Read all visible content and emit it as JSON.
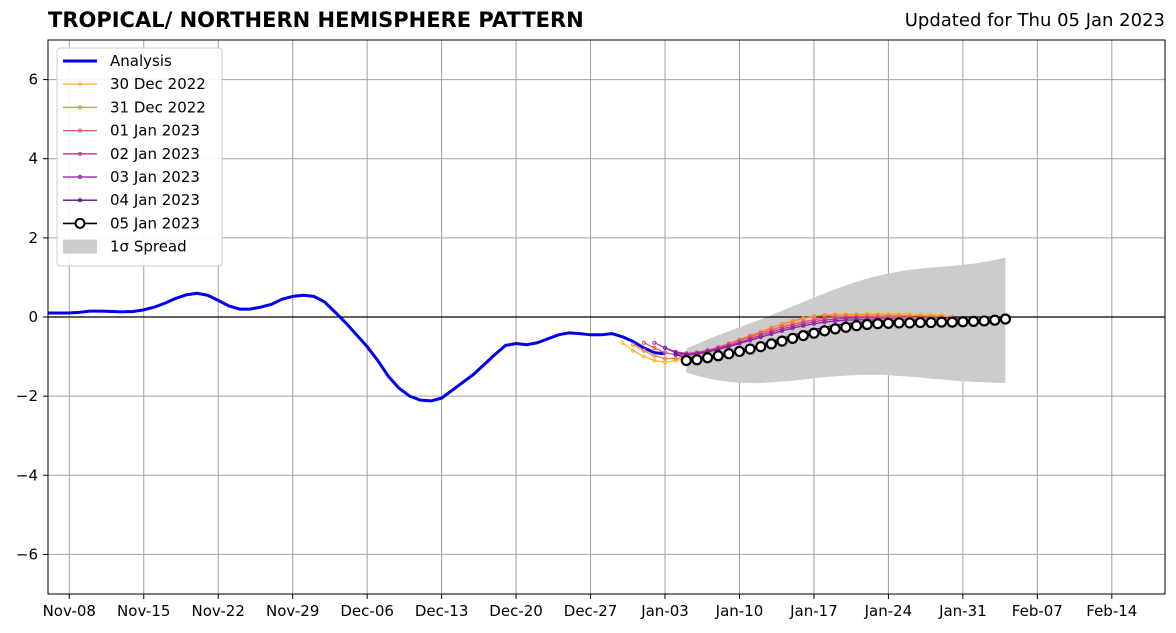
{
  "chart_data": {
    "type": "line",
    "title": "TROPICAL/ NORTHERN HEMISPHERE PATTERN",
    "subtitle": "Updated for Thu 05 Jan 2023",
    "xlabel": "",
    "ylabel": "",
    "xlim": [
      "2022-11-06",
      "2023-02-19"
    ],
    "ylim": [
      -7,
      7
    ],
    "grid": true,
    "legend_position": "upper left",
    "x_ticks": [
      "2022-11-08",
      "2022-11-15",
      "2022-11-22",
      "2022-11-29",
      "2022-12-06",
      "2022-12-13",
      "2022-12-20",
      "2022-12-27",
      "2023-01-03",
      "2023-01-10",
      "2023-01-17",
      "2023-01-24",
      "2023-01-31",
      "2023-02-07",
      "2023-02-14"
    ],
    "x_tick_labels": [
      "Nov-08",
      "Nov-15",
      "Nov-22",
      "Nov-29",
      "Dec-06",
      "Dec-13",
      "Dec-20",
      "Dec-27",
      "Jan-03",
      "Jan-10",
      "Jan-17",
      "Jan-24",
      "Jan-31",
      "Feb-07",
      "Feb-14"
    ],
    "y_ticks": [
      -6,
      -4,
      -2,
      0,
      2,
      4,
      6
    ],
    "y_tick_labels": [
      "−6",
      "−4",
      "−2",
      "0",
      "2",
      "4",
      "6"
    ],
    "analysis": {
      "name": "Analysis",
      "color": "#0000ee",
      "start": "2022-11-06",
      "values": [
        0.1,
        0.1,
        0.1,
        0.12,
        0.15,
        0.15,
        0.14,
        0.13,
        0.14,
        0.18,
        0.25,
        0.35,
        0.47,
        0.56,
        0.6,
        0.55,
        0.42,
        0.28,
        0.2,
        0.2,
        0.25,
        0.32,
        0.45,
        0.52,
        0.55,
        0.52,
        0.38,
        0.12,
        -0.15,
        -0.45,
        -0.75,
        -1.1,
        -1.5,
        -1.8,
        -2.0,
        -2.1,
        -2.12,
        -2.05,
        -1.85,
        -1.65,
        -1.45,
        -1.2,
        -0.95,
        -0.72,
        -0.67,
        -0.7,
        -0.65,
        -0.55,
        -0.45,
        -0.4,
        -0.42,
        -0.45,
        -0.45,
        -0.42,
        -0.5,
        -0.62,
        -0.78,
        -0.9,
        -0.93
      ]
    },
    "forecasts": [
      {
        "name": "30 Dec 2022",
        "color": "#ffb534",
        "start": "2022-12-30",
        "values": [
          -0.65,
          -0.85,
          -1.0,
          -1.1,
          -1.15,
          -1.1,
          -1.05,
          -0.98,
          -0.9,
          -0.82,
          -0.72,
          -0.62,
          -0.52,
          -0.42,
          -0.32,
          -0.22,
          -0.13,
          -0.05,
          0.02,
          0.05,
          0.07,
          0.08,
          0.08,
          0.08,
          0.08,
          0.08,
          0.08,
          0.07,
          0.07,
          0.06,
          0.05
        ]
      },
      {
        "name": "31 Dec 2022",
        "color": "#f4873e",
        "start": "2022-12-31",
        "values": [
          -0.7,
          -0.85,
          -0.98,
          -1.05,
          -1.05,
          -1.0,
          -0.93,
          -0.85,
          -0.76,
          -0.67,
          -0.57,
          -0.47,
          -0.37,
          -0.27,
          -0.18,
          -0.1,
          -0.03,
          0.02,
          0.04,
          0.05,
          0.05,
          0.05,
          0.05,
          0.05,
          0.04,
          0.04,
          0.03,
          0.03,
          0.02,
          0.02,
          0.01
        ]
      },
      {
        "name": "01 Jan 2023",
        "color": "#e05570",
        "start": "2023-01-01",
        "values": [
          -0.65,
          -0.78,
          -0.9,
          -0.95,
          -0.95,
          -0.9,
          -0.84,
          -0.77,
          -0.68,
          -0.59,
          -0.5,
          -0.41,
          -0.33,
          -0.25,
          -0.18,
          -0.12,
          -0.07,
          -0.03,
          0.0,
          0.01,
          0.01,
          0.01,
          0.0,
          0.0,
          -0.01,
          -0.01,
          -0.02,
          -0.02,
          -0.03,
          -0.03,
          -0.04
        ]
      },
      {
        "name": "02 Jan 2023",
        "color": "#b8368f",
        "start": "2023-01-02",
        "values": [
          -0.65,
          -0.78,
          -0.88,
          -0.92,
          -0.9,
          -0.85,
          -0.79,
          -0.72,
          -0.64,
          -0.55,
          -0.46,
          -0.38,
          -0.3,
          -0.23,
          -0.17,
          -0.12,
          -0.08,
          -0.05,
          -0.03,
          -0.02,
          -0.02,
          -0.03,
          -0.04,
          -0.05,
          -0.06,
          -0.07,
          -0.08,
          -0.09,
          -0.1,
          -0.1,
          -0.11
        ]
      },
      {
        "name": "03 Jan 2023",
        "color": "#8c1aa8",
        "start": "2023-01-03",
        "values": [
          -0.78,
          -0.9,
          -0.95,
          -0.93,
          -0.88,
          -0.82,
          -0.75,
          -0.67,
          -0.59,
          -0.51,
          -0.43,
          -0.35,
          -0.28,
          -0.22,
          -0.17,
          -0.13,
          -0.1,
          -0.08,
          -0.07,
          -0.07,
          -0.08,
          -0.09,
          -0.1,
          -0.11,
          -0.12,
          -0.13,
          -0.14,
          -0.15,
          -0.15,
          -0.16,
          -0.16
        ]
      },
      {
        "name": "04 Jan 2023",
        "color": "#4b0ea0",
        "start": "2023-01-04",
        "values": [
          -0.95,
          -1.02,
          -1.03,
          -1.0,
          -0.96,
          -0.91,
          -0.85,
          -0.78,
          -0.7,
          -0.62,
          -0.54,
          -0.46,
          -0.39,
          -0.32,
          -0.26,
          -0.21,
          -0.17,
          -0.14,
          -0.12,
          -0.11,
          -0.11,
          -0.11,
          -0.12,
          -0.12,
          -0.13,
          -0.13,
          -0.14,
          -0.14,
          -0.14,
          -0.15,
          -0.15
        ]
      },
      {
        "name": "05 Jan 2023",
        "color": "#000000",
        "start": "2023-01-05",
        "values": [
          -1.1,
          -1.08,
          -1.03,
          -0.98,
          -0.93,
          -0.87,
          -0.81,
          -0.75,
          -0.68,
          -0.61,
          -0.54,
          -0.47,
          -0.41,
          -0.35,
          -0.3,
          -0.26,
          -0.22,
          -0.19,
          -0.17,
          -0.16,
          -0.15,
          -0.15,
          -0.14,
          -0.14,
          -0.13,
          -0.13,
          -0.12,
          -0.11,
          -0.1,
          -0.08,
          -0.05
        ]
      }
    ],
    "spread": {
      "name": "1σ Spread",
      "color": "#cccccc",
      "start": "2023-01-05",
      "upper": [
        -0.8,
        -0.68,
        -0.57,
        -0.46,
        -0.36,
        -0.26,
        -0.16,
        -0.06,
        0.05,
        0.16,
        0.27,
        0.38,
        0.49,
        0.6,
        0.7,
        0.8,
        0.89,
        0.97,
        1.04,
        1.1,
        1.15,
        1.19,
        1.22,
        1.25,
        1.27,
        1.29,
        1.32,
        1.35,
        1.39,
        1.44,
        1.5
      ],
      "lower": [
        -1.4,
        -1.48,
        -1.55,
        -1.6,
        -1.64,
        -1.66,
        -1.67,
        -1.67,
        -1.65,
        -1.63,
        -1.61,
        -1.58,
        -1.55,
        -1.52,
        -1.5,
        -1.48,
        -1.47,
        -1.46,
        -1.46,
        -1.47,
        -1.49,
        -1.51,
        -1.53,
        -1.56,
        -1.58,
        -1.6,
        -1.62,
        -1.64,
        -1.65,
        -1.66,
        -1.67
      ]
    }
  }
}
